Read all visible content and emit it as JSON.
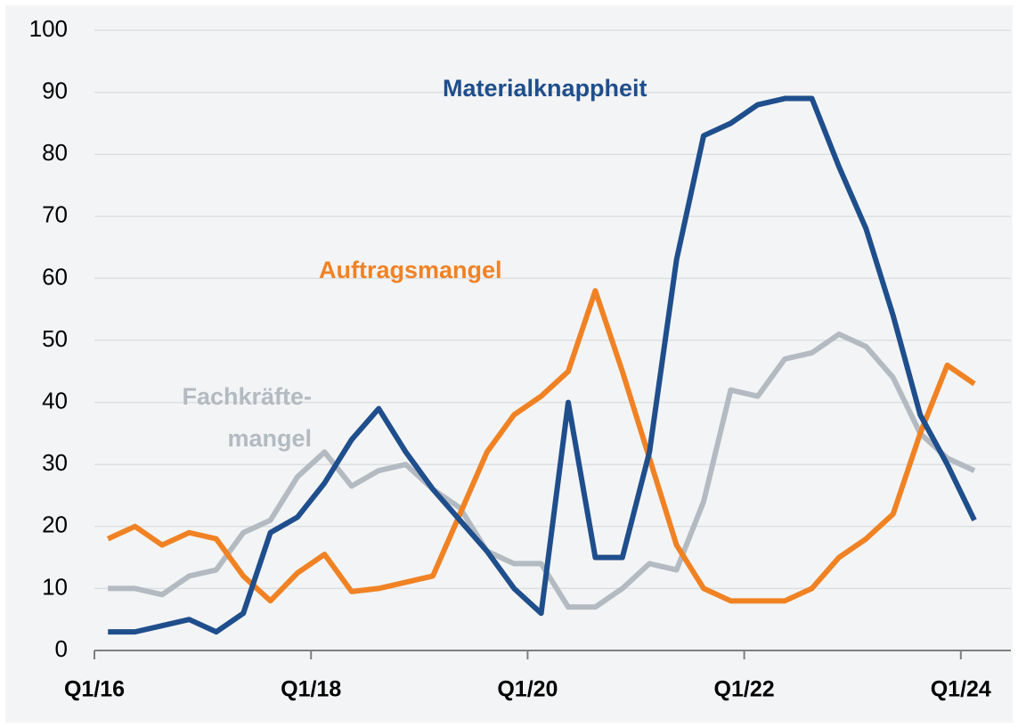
{
  "chart_data": {
    "type": "line",
    "categories": [
      "Q1/16",
      null,
      null,
      null,
      null,
      null,
      null,
      null,
      "Q1/18",
      null,
      null,
      null,
      null,
      null,
      null,
      null,
      "Q1/20",
      null,
      null,
      null,
      null,
      null,
      null,
      null,
      "Q1/22",
      null,
      null,
      null,
      null,
      null,
      null,
      null,
      "Q1/24"
    ],
    "series": [
      {
        "name": "Materialknappheit",
        "color": "#1f4e8c",
        "values": [
          3,
          3,
          4,
          5,
          3,
          6,
          19,
          21.5,
          27,
          34,
          39,
          32,
          26,
          21,
          16,
          10,
          6,
          40,
          15,
          15,
          32,
          63,
          83,
          85,
          88,
          89,
          89,
          78,
          68,
          54,
          38,
          30,
          21
        ]
      },
      {
        "name": "Auftragsmangel",
        "color": "#f08224",
        "values": [
          18,
          20,
          17,
          19,
          18,
          12,
          8,
          12.5,
          15.5,
          9.5,
          10,
          11,
          12,
          22,
          32,
          38,
          41,
          45,
          58,
          45,
          31,
          17,
          10,
          8,
          8,
          8,
          10,
          15,
          18,
          22,
          35,
          46,
          43
        ]
      },
      {
        "name": "Fachkräfte-mangel",
        "color": "#b3bac1",
        "values": [
          10,
          10,
          9,
          12,
          13,
          19,
          21,
          28,
          32,
          26.5,
          29,
          30,
          26,
          23,
          16,
          14,
          14,
          7,
          7,
          10,
          14,
          13,
          24,
          42,
          41,
          47,
          48,
          51,
          49,
          44,
          35,
          31,
          29
        ]
      }
    ],
    "ylim": [
      0,
      100
    ],
    "yticks": [
      0,
      10,
      20,
      30,
      40,
      50,
      60,
      70,
      80,
      90,
      100
    ],
    "grid": true
  }
}
